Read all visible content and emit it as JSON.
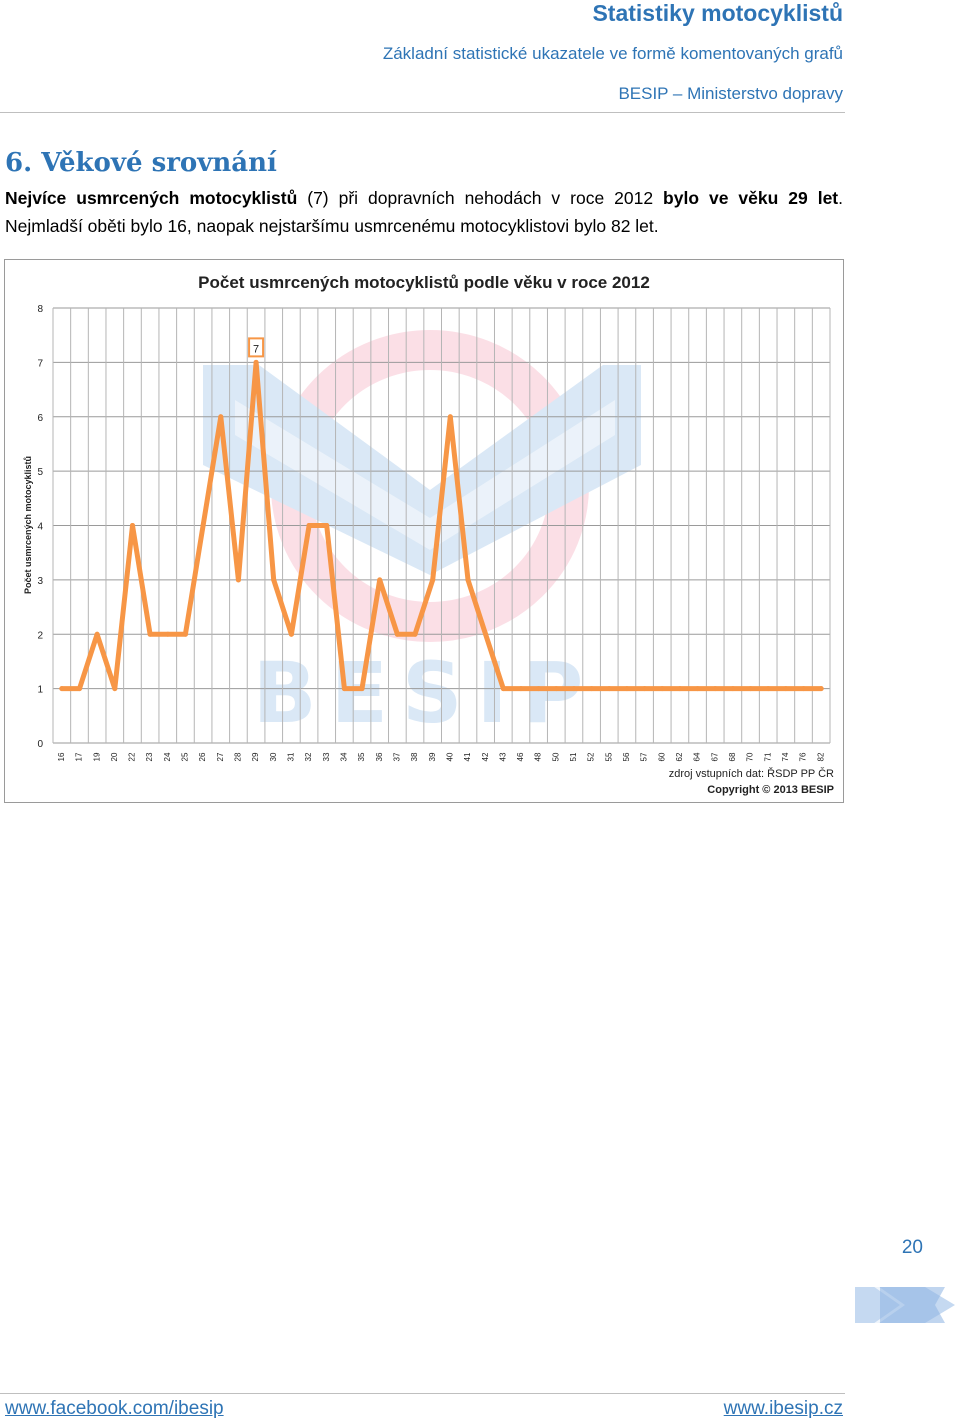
{
  "header": {
    "title": "Statistiky motocyklistů",
    "subtitle": "Základní statistické ukazatele ve formě komentovaných grafů",
    "org": "BESIP – Ministerstvo dopravy"
  },
  "section": {
    "heading": "6. Věkové srovnání",
    "p1_bold_a": "Nejvíce usmrcených motocyklistů",
    "p1_mid": " (7) při dopravních nehodách v roce 2012 ",
    "p1_bold_b": "bylo ve věku 29 let",
    "p1_end": ". Nejmladší oběti bylo 16, naopak nejstaršímu usmrcenému motocyklistovi bylo 82 let."
  },
  "chart_data": {
    "type": "line",
    "title": "Počet usmrcených motocyklistů podle věku v roce 2012",
    "xlabel": "",
    "ylabel": "Počet usmrcených motocyklistů",
    "ylim": [
      0,
      8
    ],
    "y_ticks": [
      "0",
      "1",
      "2",
      "3",
      "4",
      "5",
      "6",
      "7",
      "8"
    ],
    "grid": true,
    "color": "#f79646",
    "categories": [
      "16",
      "17",
      "19",
      "20",
      "22",
      "23",
      "24",
      "25",
      "26",
      "27",
      "28",
      "29",
      "30",
      "31",
      "32",
      "33",
      "34",
      "35",
      "36",
      "37",
      "38",
      "39",
      "40",
      "41",
      "42",
      "43",
      "46",
      "48",
      "50",
      "51",
      "52",
      "55",
      "56",
      "57",
      "60",
      "62",
      "64",
      "67",
      "68",
      "70",
      "71",
      "74",
      "76",
      "82"
    ],
    "values": [
      1,
      1,
      2,
      1,
      4,
      2,
      2,
      2,
      4,
      6,
      3,
      7,
      3,
      2,
      4,
      4,
      1,
      1,
      3,
      2,
      2,
      3,
      6,
      3,
      2,
      1,
      1,
      1,
      1,
      1,
      1,
      1,
      1,
      1,
      1,
      1,
      1,
      1,
      1,
      1,
      1,
      1,
      1,
      1
    ],
    "data_label": "7",
    "source_note": "zdroj vstupních dat: ŘSDP PP ČR",
    "copyright": "Copyright © 2013 BESIP",
    "watermark": "BESIP"
  },
  "page": {
    "number": "20"
  },
  "footer": {
    "left_link": "www.facebook.com/ibesip",
    "right_link": "www.ibesip.cz"
  }
}
